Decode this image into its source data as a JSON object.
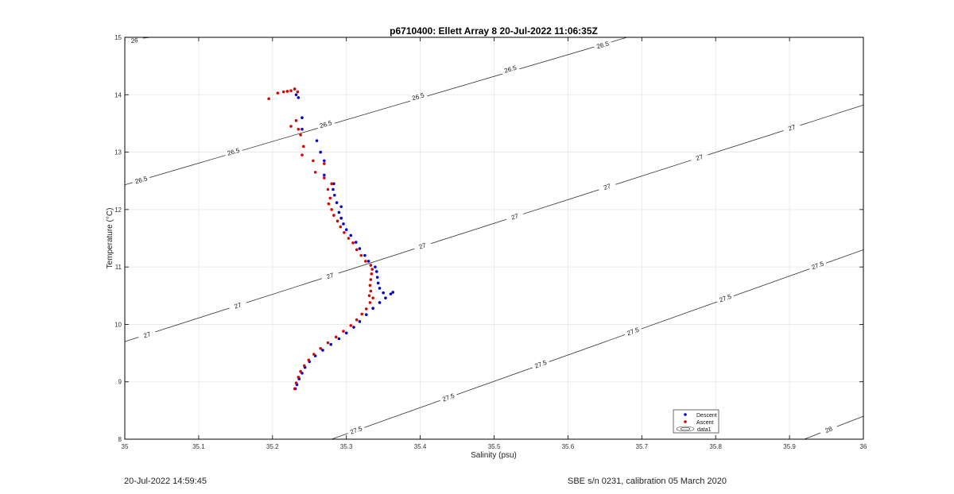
{
  "footer": {
    "left": "20-Jul-2022 14:59:45",
    "right": "SBE s/n 0231, calibration 05 March 2020"
  },
  "chart_data": {
    "type": "scatter",
    "title": "p6710400: Ellett Array 8 20-Jul-2022 11:06:35Z",
    "xlabel": "Salinity (psu)",
    "ylabel": "Temperature (°C)",
    "xlim": [
      35,
      36
    ],
    "ylim": [
      8,
      15
    ],
    "xticks": [
      "35",
      "35.1",
      "35.2",
      "35.3",
      "35.4",
      "35.5",
      "35.6",
      "35.7",
      "35.8",
      "35.9",
      "36"
    ],
    "yticks": [
      "8",
      "9",
      "10",
      "11",
      "12",
      "13",
      "14",
      "15"
    ],
    "grid": true,
    "legend_position": "bottom-right",
    "legend": [
      "Descent",
      "Ascent",
      "data1"
    ],
    "colors": {
      "descent": "#0000cc",
      "ascent": "#e00000",
      "contour": "#333333"
    },
    "series": [
      {
        "name": "Descent",
        "points": [
          [
            35.231,
            8.88
          ],
          [
            35.233,
            8.95
          ],
          [
            35.236,
            9.05
          ],
          [
            35.24,
            9.15
          ],
          [
            35.244,
            9.25
          ],
          [
            35.25,
            9.35
          ],
          [
            35.258,
            9.45
          ],
          [
            35.268,
            9.55
          ],
          [
            35.279,
            9.65
          ],
          [
            35.29,
            9.75
          ],
          [
            35.3,
            9.85
          ],
          [
            35.31,
            9.95
          ],
          [
            35.318,
            10.05
          ],
          [
            35.327,
            10.17
          ],
          [
            35.336,
            10.28
          ],
          [
            35.345,
            10.38
          ],
          [
            35.353,
            10.46
          ],
          [
            35.36,
            10.53
          ],
          [
            35.363,
            10.56
          ],
          [
            35.35,
            10.55
          ],
          [
            35.345,
            10.63
          ],
          [
            35.343,
            10.72
          ],
          [
            35.342,
            10.82
          ],
          [
            35.341,
            10.92
          ],
          [
            35.339,
            11.0
          ],
          [
            35.33,
            11.1
          ],
          [
            35.325,
            11.2
          ],
          [
            35.318,
            11.32
          ],
          [
            35.313,
            11.43
          ],
          [
            35.306,
            11.55
          ],
          [
            35.3,
            11.65
          ],
          [
            35.296,
            11.75
          ],
          [
            35.293,
            11.85
          ],
          [
            35.29,
            11.95
          ],
          [
            35.293,
            12.05
          ],
          [
            35.287,
            12.12
          ],
          [
            35.284,
            12.25
          ],
          [
            35.282,
            12.35
          ],
          [
            35.283,
            12.45
          ],
          [
            35.27,
            12.6
          ],
          [
            35.27,
            12.85
          ],
          [
            35.265,
            13.0
          ],
          [
            35.26,
            13.2
          ],
          [
            35.24,
            13.4
          ],
          [
            35.24,
            13.6
          ],
          [
            35.235,
            13.95
          ],
          [
            35.232,
            14.0
          ],
          [
            35.23,
            14.1
          ]
        ]
      },
      {
        "name": "Ascent",
        "points": [
          [
            35.23,
            8.88
          ],
          [
            35.232,
            8.98
          ],
          [
            35.235,
            9.08
          ],
          [
            35.238,
            9.18
          ],
          [
            35.243,
            9.28
          ],
          [
            35.249,
            9.38
          ],
          [
            35.256,
            9.48
          ],
          [
            35.265,
            9.58
          ],
          [
            35.275,
            9.68
          ],
          [
            35.286,
            9.78
          ],
          [
            35.296,
            9.88
          ],
          [
            35.306,
            9.98
          ],
          [
            35.314,
            10.08
          ],
          [
            35.321,
            10.18
          ],
          [
            35.327,
            10.27
          ],
          [
            35.332,
            10.38
          ],
          [
            35.336,
            10.46
          ],
          [
            35.331,
            10.5
          ],
          [
            35.333,
            10.58
          ],
          [
            35.332,
            10.68
          ],
          [
            35.333,
            10.78
          ],
          [
            35.334,
            10.88
          ],
          [
            35.335,
            10.96
          ],
          [
            35.333,
            11.03
          ],
          [
            35.326,
            11.1
          ],
          [
            35.32,
            11.2
          ],
          [
            35.314,
            11.3
          ],
          [
            35.309,
            11.42
          ],
          [
            35.303,
            11.5
          ],
          [
            35.297,
            11.6
          ],
          [
            35.292,
            11.7
          ],
          [
            35.288,
            11.8
          ],
          [
            35.283,
            11.9
          ],
          [
            35.28,
            12.0
          ],
          [
            35.276,
            12.1
          ],
          [
            35.278,
            12.2
          ],
          [
            35.275,
            12.35
          ],
          [
            35.28,
            12.45
          ],
          [
            35.27,
            12.55
          ],
          [
            35.258,
            12.65
          ],
          [
            35.27,
            12.8
          ],
          [
            35.255,
            12.85
          ],
          [
            35.24,
            12.95
          ],
          [
            35.242,
            13.1
          ],
          [
            35.238,
            13.3
          ],
          [
            35.235,
            13.4
          ],
          [
            35.225,
            13.45
          ],
          [
            35.232,
            13.55
          ],
          [
            35.215,
            14.05
          ],
          [
            35.22,
            14.06
          ],
          [
            35.225,
            14.07
          ],
          [
            35.23,
            14.1
          ],
          [
            35.234,
            14.05
          ],
          [
            35.207,
            14.03
          ],
          [
            35.195,
            13.93
          ]
        ]
      }
    ],
    "contours": [
      {
        "level": "26",
        "from": [
          35.0,
          14.95
        ],
        "to": [
          35.035,
          15.0
        ],
        "labels": [
          [
            35.013,
            14.95
          ]
        ]
      },
      {
        "level": "26.5",
        "from": [
          35.0,
          12.43
        ],
        "to": [
          35.68,
          15.0
        ],
        "labels": [
          [
            35.022,
            12.52
          ],
          [
            35.147,
            13.01
          ],
          [
            35.272,
            13.49
          ],
          [
            35.397,
            13.97
          ],
          [
            35.522,
            14.45
          ],
          [
            35.647,
            14.87
          ]
        ]
      },
      {
        "level": "27",
        "from": [
          35.0,
          9.7
        ],
        "to": [
          36.0,
          13.82
        ],
        "labels": [
          [
            35.03,
            9.82
          ],
          [
            35.153,
            10.33
          ],
          [
            35.278,
            10.85
          ],
          [
            35.403,
            11.37
          ],
          [
            35.528,
            11.88
          ],
          [
            35.653,
            12.4
          ],
          [
            35.778,
            12.91
          ],
          [
            35.903,
            13.43
          ]
        ]
      },
      {
        "level": "27.5",
        "from": [
          35.28,
          8.0
        ],
        "to": [
          36.0,
          11.3
        ],
        "labels": [
          [
            35.313,
            8.16
          ],
          [
            35.438,
            8.73
          ],
          [
            35.563,
            9.31
          ],
          [
            35.688,
            9.88
          ],
          [
            35.813,
            10.46
          ],
          [
            35.938,
            11.03
          ]
        ]
      },
      {
        "level": "28",
        "from": [
          35.92,
          8.0
        ],
        "to": [
          36.0,
          8.4
        ],
        "labels": [
          [
            35.953,
            8.17
          ]
        ]
      }
    ]
  }
}
